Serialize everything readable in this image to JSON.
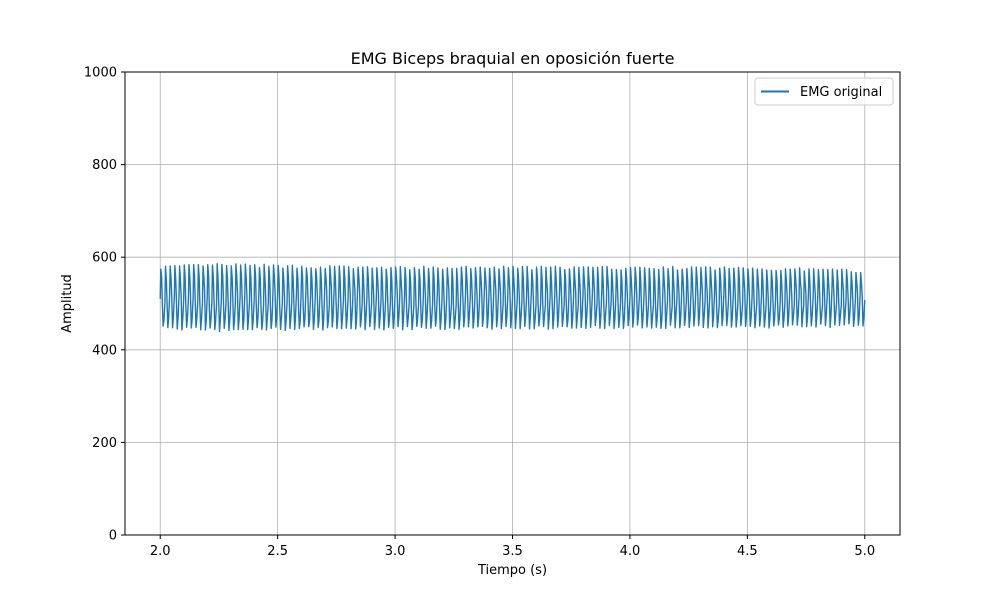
{
  "chart_data": {
    "type": "line",
    "title": "EMG Biceps braquial en oposición fuerte",
    "xlabel": "Tiempo (s)",
    "ylabel": "Amplitud",
    "xlim": [
      1.85,
      5.15
    ],
    "ylim": [
      0,
      1000
    ],
    "xticks": [
      2.0,
      2.5,
      3.0,
      3.5,
      4.0,
      4.5,
      5.0
    ],
    "xtick_labels": [
      "2.0",
      "2.5",
      "3.0",
      "3.5",
      "4.0",
      "4.5",
      "5.0"
    ],
    "yticks": [
      0,
      200,
      400,
      600,
      800,
      1000
    ],
    "ytick_labels": [
      "0",
      "200",
      "400",
      "600",
      "800",
      "1000"
    ],
    "grid": true,
    "legend": {
      "position": "top-right",
      "entries": [
        "EMG original"
      ]
    },
    "series": [
      {
        "name": "EMG original",
        "color": "#1f77b4",
        "x_range": [
          2.0,
          5.0
        ],
        "cycles": 150,
        "envelope_max": [
          [
            2.0,
            578
          ],
          [
            2.25,
            583
          ],
          [
            2.5,
            580
          ],
          [
            3.0,
            576
          ],
          [
            3.5,
            577
          ],
          [
            4.0,
            576
          ],
          [
            4.5,
            576
          ],
          [
            5.0,
            570
          ]
        ],
        "envelope_min": [
          [
            2.0,
            448
          ],
          [
            2.25,
            443
          ],
          [
            2.5,
            446
          ],
          [
            3.0,
            447
          ],
          [
            3.5,
            448
          ],
          [
            4.0,
            450
          ],
          [
            4.5,
            450
          ],
          [
            5.0,
            453
          ]
        ],
        "baseline": 510
      }
    ]
  }
}
